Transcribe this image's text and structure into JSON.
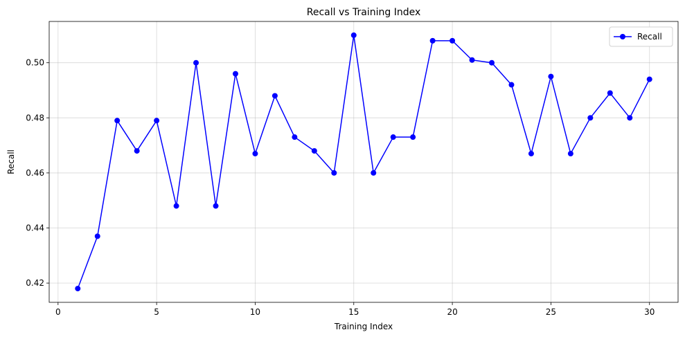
{
  "chart_data": {
    "type": "line",
    "title": "Recall vs Training Index",
    "xlabel": "Training Index",
    "ylabel": "Recall",
    "xlim": [
      -0.45,
      31.45
    ],
    "ylim": [
      0.413,
      0.515
    ],
    "xticks": [
      0,
      5,
      10,
      15,
      20,
      25,
      30
    ],
    "xtick_labels": [
      "0",
      "5",
      "10",
      "15",
      "20",
      "25",
      "30"
    ],
    "yticks": [
      0.42,
      0.44,
      0.46,
      0.48,
      0.5
    ],
    "ytick_labels": [
      "0.42",
      "0.44",
      "0.46",
      "0.48",
      "0.50"
    ],
    "grid": true,
    "legend_position": "top-right",
    "series": [
      {
        "name": "Recall",
        "color": "#0000ff",
        "marker": "circle",
        "x": [
          1,
          2,
          3,
          4,
          5,
          6,
          7,
          8,
          9,
          10,
          11,
          12,
          13,
          14,
          15,
          16,
          17,
          18,
          19,
          20,
          21,
          22,
          23,
          24,
          25,
          26,
          27,
          28,
          29,
          30
        ],
        "values": [
          0.418,
          0.437,
          0.479,
          0.468,
          0.479,
          0.448,
          0.5,
          0.448,
          0.496,
          0.467,
          0.488,
          0.473,
          0.468,
          0.46,
          0.51,
          0.46,
          0.473,
          0.473,
          0.508,
          0.508,
          0.501,
          0.5,
          0.492,
          0.467,
          0.495,
          0.467,
          0.48,
          0.489,
          0.48,
          0.494
        ]
      }
    ]
  }
}
